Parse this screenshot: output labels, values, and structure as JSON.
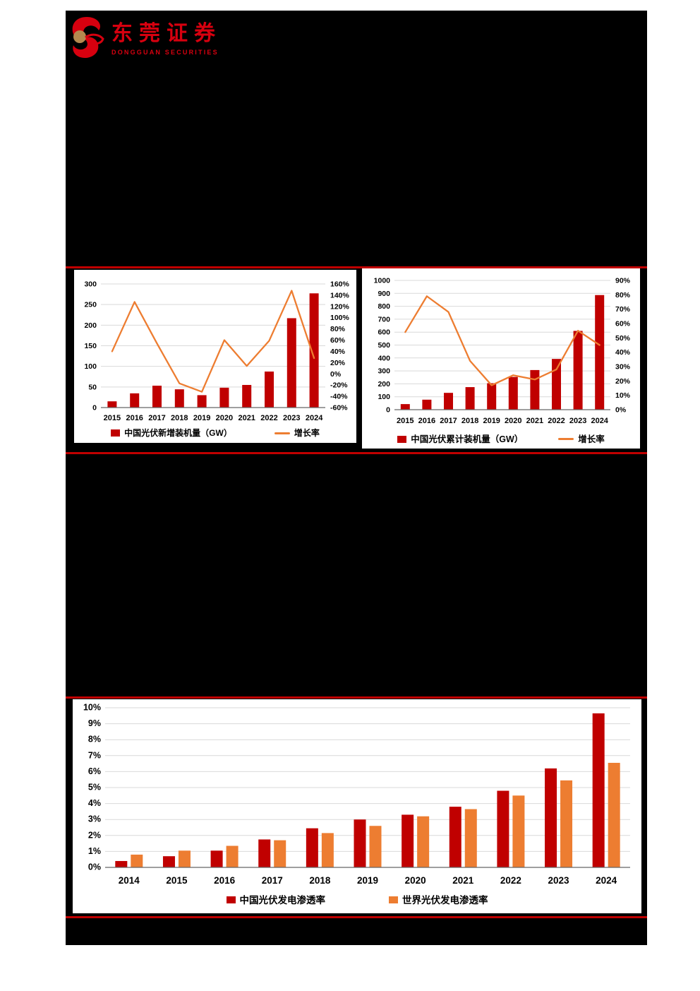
{
  "page": {
    "background": "#ffffff",
    "accent_red": "#c00000",
    "redaction_color": "#000000"
  },
  "logo": {
    "company_cn": "东莞证券",
    "company_en": "DONGGUAN SECURITIES",
    "brand_red": "#d7000f",
    "brand_gold": "#b5894f"
  },
  "chart_data": [
    {
      "type": "bar+line",
      "title": "",
      "categories": [
        "2015",
        "2016",
        "2017",
        "2018",
        "2019",
        "2020",
        "2021",
        "2022",
        "2023",
        "2024"
      ],
      "series": [
        {
          "kind": "bar",
          "name": "中国光伏新增装机量（GW）",
          "axis": "left",
          "color": "#c00000",
          "values": [
            15.1,
            34.5,
            53.1,
            44.3,
            30.1,
            48.2,
            54.9,
            87.4,
            216.9,
            277.2
          ]
        },
        {
          "kind": "line",
          "name": "增长率",
          "axis": "right",
          "color": "#ed7d31",
          "values": [
            40,
            128,
            54,
            -17,
            -32,
            60,
            14,
            59,
            148,
            28
          ]
        }
      ],
      "left_axis": {
        "min": 0,
        "max": 300,
        "step": 50,
        "suffix": ""
      },
      "right_axis": {
        "min": -60,
        "max": 160,
        "step": 20,
        "suffix": "%"
      },
      "grid": true,
      "legend_position": "bottom"
    },
    {
      "type": "bar+line",
      "title": "",
      "categories": [
        "2015",
        "2016",
        "2017",
        "2018",
        "2019",
        "2020",
        "2021",
        "2022",
        "2023",
        "2024"
      ],
      "series": [
        {
          "kind": "bar",
          "name": "中国光伏累计装机量（GW）",
          "axis": "left",
          "color": "#c00000",
          "values": [
            43.2,
            77.4,
            130.2,
            174.5,
            204.7,
            253.4,
            306.6,
            392.6,
            609.5,
            886.7
          ]
        },
        {
          "kind": "line",
          "name": "增长率",
          "axis": "right",
          "color": "#ed7d31",
          "values": [
            54,
            79,
            68,
            34,
            17,
            24,
            21,
            28,
            55,
            45
          ]
        }
      ],
      "left_axis": {
        "min": 0,
        "max": 1000,
        "step": 100,
        "suffix": ""
      },
      "right_axis": {
        "min": 0,
        "max": 90,
        "step": 10,
        "suffix": "%"
      },
      "grid": true,
      "legend_position": "bottom"
    },
    {
      "type": "bar",
      "title": "",
      "categories": [
        "2014",
        "2015",
        "2016",
        "2017",
        "2018",
        "2019",
        "2020",
        "2021",
        "2022",
        "2023",
        "2024"
      ],
      "series": [
        {
          "kind": "bar",
          "name": "中国光伏发电渗透率",
          "axis": "left",
          "color": "#c00000",
          "values": [
            0.4,
            0.7,
            1.05,
            1.75,
            2.45,
            3.0,
            3.3,
            3.8,
            4.8,
            6.2,
            9.65
          ]
        },
        {
          "kind": "bar",
          "name": "世界光伏发电渗透率",
          "axis": "left",
          "color": "#ed7d31",
          "values": [
            0.8,
            1.05,
            1.35,
            1.7,
            2.15,
            2.6,
            3.2,
            3.65,
            4.5,
            5.45,
            6.55
          ]
        }
      ],
      "left_axis": {
        "min": 0,
        "max": 10,
        "step": 1,
        "suffix": "%"
      },
      "right_axis": null,
      "grid": true,
      "legend_position": "bottom"
    }
  ]
}
